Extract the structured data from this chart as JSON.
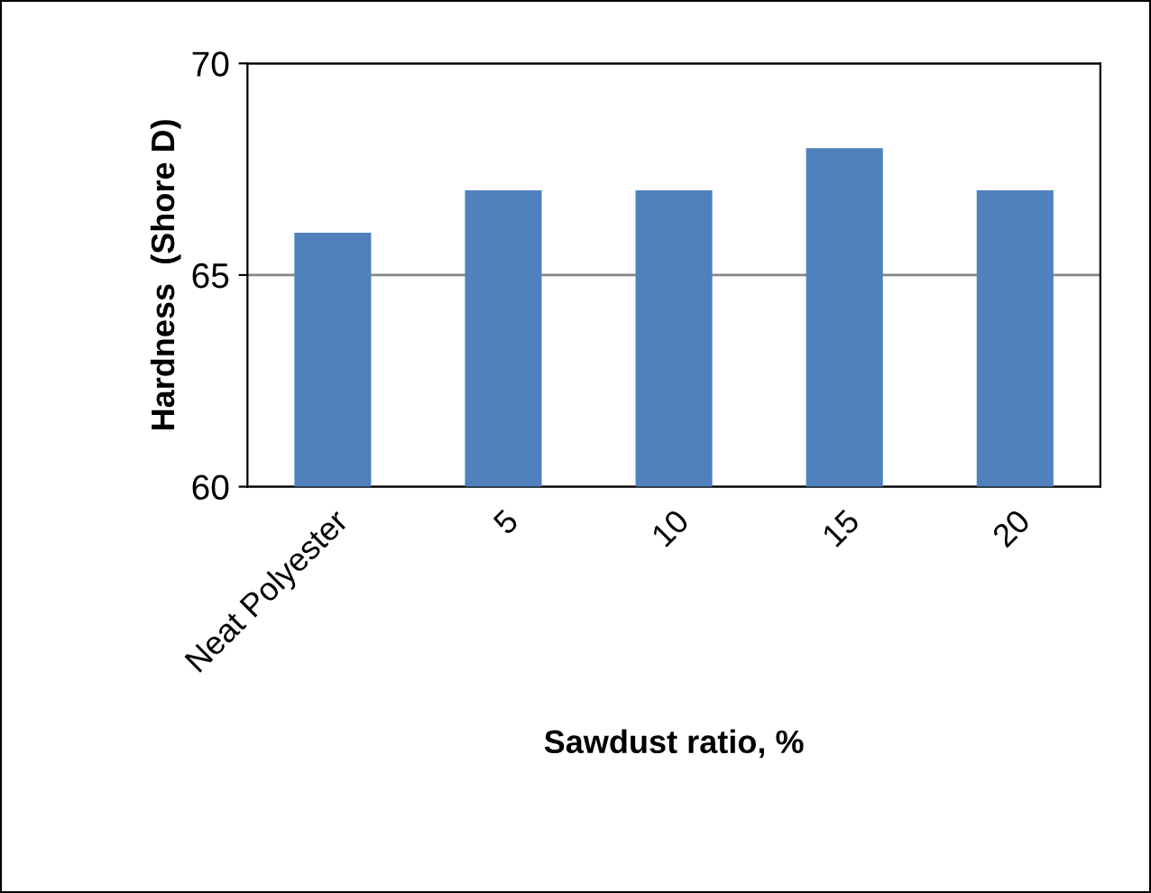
{
  "chart_data": {
    "type": "bar",
    "xlabel": "Sawdust ratio, %",
    "ylabel": "Hardness  (Shore D)",
    "categories": [
      "Neat Polyester",
      "5",
      "10",
      "15",
      "20"
    ],
    "values": [
      66,
      67,
      67,
      68,
      67
    ],
    "color": "#4f81bd",
    "ylim": [
      60,
      70
    ],
    "yticks": [
      60,
      65,
      70
    ],
    "grid": "y"
  }
}
